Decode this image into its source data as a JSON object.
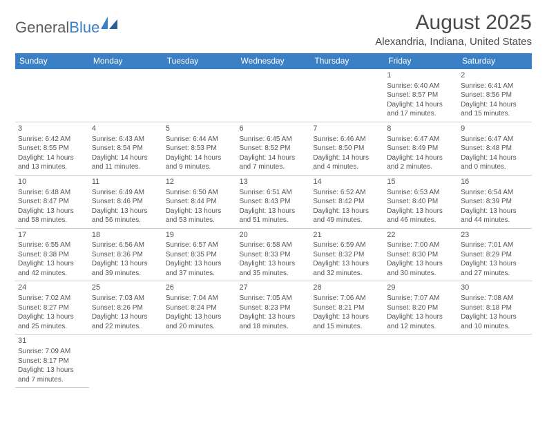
{
  "logo": {
    "part1": "General",
    "part2": "Blue"
  },
  "title": "August 2025",
  "location": "Alexandria, Indiana, United States",
  "day_headers": [
    "Sunday",
    "Monday",
    "Tuesday",
    "Wednesday",
    "Thursday",
    "Friday",
    "Saturday"
  ],
  "colors": {
    "header_bg": "#3b7fc4",
    "header_text": "#ffffff",
    "row_border": "#3b7fc4",
    "text": "#555555"
  },
  "weeks": [
    [
      null,
      null,
      null,
      null,
      null,
      {
        "n": "1",
        "sr": "Sunrise: 6:40 AM",
        "ss": "Sunset: 8:57 PM",
        "d1": "Daylight: 14 hours",
        "d2": "and 17 minutes."
      },
      {
        "n": "2",
        "sr": "Sunrise: 6:41 AM",
        "ss": "Sunset: 8:56 PM",
        "d1": "Daylight: 14 hours",
        "d2": "and 15 minutes."
      }
    ],
    [
      {
        "n": "3",
        "sr": "Sunrise: 6:42 AM",
        "ss": "Sunset: 8:55 PM",
        "d1": "Daylight: 14 hours",
        "d2": "and 13 minutes."
      },
      {
        "n": "4",
        "sr": "Sunrise: 6:43 AM",
        "ss": "Sunset: 8:54 PM",
        "d1": "Daylight: 14 hours",
        "d2": "and 11 minutes."
      },
      {
        "n": "5",
        "sr": "Sunrise: 6:44 AM",
        "ss": "Sunset: 8:53 PM",
        "d1": "Daylight: 14 hours",
        "d2": "and 9 minutes."
      },
      {
        "n": "6",
        "sr": "Sunrise: 6:45 AM",
        "ss": "Sunset: 8:52 PM",
        "d1": "Daylight: 14 hours",
        "d2": "and 7 minutes."
      },
      {
        "n": "7",
        "sr": "Sunrise: 6:46 AM",
        "ss": "Sunset: 8:50 PM",
        "d1": "Daylight: 14 hours",
        "d2": "and 4 minutes."
      },
      {
        "n": "8",
        "sr": "Sunrise: 6:47 AM",
        "ss": "Sunset: 8:49 PM",
        "d1": "Daylight: 14 hours",
        "d2": "and 2 minutes."
      },
      {
        "n": "9",
        "sr": "Sunrise: 6:47 AM",
        "ss": "Sunset: 8:48 PM",
        "d1": "Daylight: 14 hours",
        "d2": "and 0 minutes."
      }
    ],
    [
      {
        "n": "10",
        "sr": "Sunrise: 6:48 AM",
        "ss": "Sunset: 8:47 PM",
        "d1": "Daylight: 13 hours",
        "d2": "and 58 minutes."
      },
      {
        "n": "11",
        "sr": "Sunrise: 6:49 AM",
        "ss": "Sunset: 8:46 PM",
        "d1": "Daylight: 13 hours",
        "d2": "and 56 minutes."
      },
      {
        "n": "12",
        "sr": "Sunrise: 6:50 AM",
        "ss": "Sunset: 8:44 PM",
        "d1": "Daylight: 13 hours",
        "d2": "and 53 minutes."
      },
      {
        "n": "13",
        "sr": "Sunrise: 6:51 AM",
        "ss": "Sunset: 8:43 PM",
        "d1": "Daylight: 13 hours",
        "d2": "and 51 minutes."
      },
      {
        "n": "14",
        "sr": "Sunrise: 6:52 AM",
        "ss": "Sunset: 8:42 PM",
        "d1": "Daylight: 13 hours",
        "d2": "and 49 minutes."
      },
      {
        "n": "15",
        "sr": "Sunrise: 6:53 AM",
        "ss": "Sunset: 8:40 PM",
        "d1": "Daylight: 13 hours",
        "d2": "and 46 minutes."
      },
      {
        "n": "16",
        "sr": "Sunrise: 6:54 AM",
        "ss": "Sunset: 8:39 PM",
        "d1": "Daylight: 13 hours",
        "d2": "and 44 minutes."
      }
    ],
    [
      {
        "n": "17",
        "sr": "Sunrise: 6:55 AM",
        "ss": "Sunset: 8:38 PM",
        "d1": "Daylight: 13 hours",
        "d2": "and 42 minutes."
      },
      {
        "n": "18",
        "sr": "Sunrise: 6:56 AM",
        "ss": "Sunset: 8:36 PM",
        "d1": "Daylight: 13 hours",
        "d2": "and 39 minutes."
      },
      {
        "n": "19",
        "sr": "Sunrise: 6:57 AM",
        "ss": "Sunset: 8:35 PM",
        "d1": "Daylight: 13 hours",
        "d2": "and 37 minutes."
      },
      {
        "n": "20",
        "sr": "Sunrise: 6:58 AM",
        "ss": "Sunset: 8:33 PM",
        "d1": "Daylight: 13 hours",
        "d2": "and 35 minutes."
      },
      {
        "n": "21",
        "sr": "Sunrise: 6:59 AM",
        "ss": "Sunset: 8:32 PM",
        "d1": "Daylight: 13 hours",
        "d2": "and 32 minutes."
      },
      {
        "n": "22",
        "sr": "Sunrise: 7:00 AM",
        "ss": "Sunset: 8:30 PM",
        "d1": "Daylight: 13 hours",
        "d2": "and 30 minutes."
      },
      {
        "n": "23",
        "sr": "Sunrise: 7:01 AM",
        "ss": "Sunset: 8:29 PM",
        "d1": "Daylight: 13 hours",
        "d2": "and 27 minutes."
      }
    ],
    [
      {
        "n": "24",
        "sr": "Sunrise: 7:02 AM",
        "ss": "Sunset: 8:27 PM",
        "d1": "Daylight: 13 hours",
        "d2": "and 25 minutes."
      },
      {
        "n": "25",
        "sr": "Sunrise: 7:03 AM",
        "ss": "Sunset: 8:26 PM",
        "d1": "Daylight: 13 hours",
        "d2": "and 22 minutes."
      },
      {
        "n": "26",
        "sr": "Sunrise: 7:04 AM",
        "ss": "Sunset: 8:24 PM",
        "d1": "Daylight: 13 hours",
        "d2": "and 20 minutes."
      },
      {
        "n": "27",
        "sr": "Sunrise: 7:05 AM",
        "ss": "Sunset: 8:23 PM",
        "d1": "Daylight: 13 hours",
        "d2": "and 18 minutes."
      },
      {
        "n": "28",
        "sr": "Sunrise: 7:06 AM",
        "ss": "Sunset: 8:21 PM",
        "d1": "Daylight: 13 hours",
        "d2": "and 15 minutes."
      },
      {
        "n": "29",
        "sr": "Sunrise: 7:07 AM",
        "ss": "Sunset: 8:20 PM",
        "d1": "Daylight: 13 hours",
        "d2": "and 12 minutes."
      },
      {
        "n": "30",
        "sr": "Sunrise: 7:08 AM",
        "ss": "Sunset: 8:18 PM",
        "d1": "Daylight: 13 hours",
        "d2": "and 10 minutes."
      }
    ],
    [
      {
        "n": "31",
        "sr": "Sunrise: 7:09 AM",
        "ss": "Sunset: 8:17 PM",
        "d1": "Daylight: 13 hours",
        "d2": "and 7 minutes."
      },
      null,
      null,
      null,
      null,
      null,
      null
    ]
  ]
}
